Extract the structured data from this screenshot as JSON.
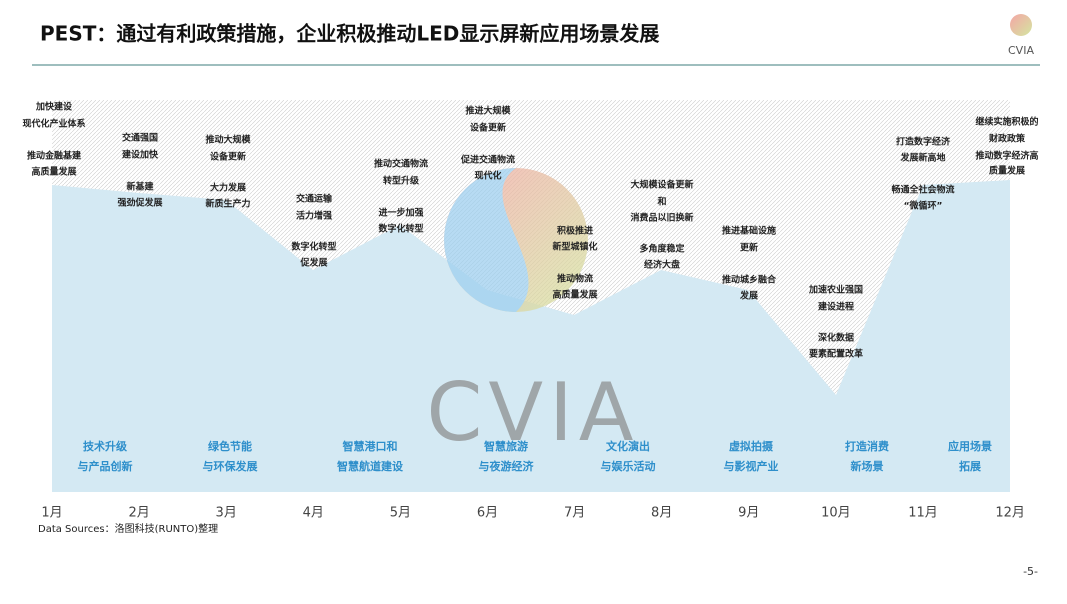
{
  "header": {
    "title": "PEST：通过有利政策措施，企业积极推动LED显示屏新应用场景发展",
    "logo": "CVIA"
  },
  "watermark": "CVIA",
  "months": [
    "1月",
    "2月",
    "3月",
    "4月",
    "5月",
    "6月",
    "7月",
    "8月",
    "9月",
    "10月",
    "11月",
    "12月"
  ],
  "notes": [
    [
      "加快建设",
      "现代化产业体系",
      "推动金融基建",
      "高质量发展"
    ],
    [
      "交通强国",
      "建设加快",
      "新基建",
      "强劲促发展"
    ],
    [
      "推动大规模",
      "设备更新",
      "大力发展",
      "新质生产力"
    ],
    [
      "交通运输",
      "活力增强",
      "数字化转型",
      "促发展"
    ],
    [
      "推动交通物流",
      "转型升级",
      "进一步加强",
      "数字化转型"
    ],
    [
      "推进大规模",
      "设备更新",
      "促进交通物流",
      "现代化"
    ],
    [
      "积极推进",
      "新型城镇化",
      "推动物流",
      "高质量发展"
    ],
    [
      "大规模设备更新",
      "和",
      "消费品以旧换新",
      "多角度稳定",
      "经济大盘"
    ],
    [
      "推进基础设施",
      "更新",
      "推动城乡融合",
      "发展"
    ],
    [
      "加速农业强国",
      "建设进程",
      "深化数据",
      "要素配置改革"
    ],
    [
      "打造数字经济",
      "发展新高地",
      "畅通全社会物流",
      "“微循环”"
    ],
    [
      "继续实施积极的",
      "财政政策",
      "推动数字经济高",
      "质量发展"
    ]
  ],
  "applications": [
    [
      "技术升级",
      "与产品创新"
    ],
    [
      "绿色节能",
      "与环保发展"
    ],
    [
      "智慧港口和",
      "智慧航道建设"
    ],
    [
      "智慧旅游",
      "与夜游经济"
    ],
    [
      "文化演出",
      "与娱乐活动"
    ],
    [
      "虚拟拍摄",
      "与影视产业"
    ],
    [
      "打造消费",
      "新场景"
    ],
    [
      "应用场景",
      "拓展"
    ]
  ],
  "footer": {
    "source": "Data Sources：洛图科技(RUNTO)整理",
    "page": "-5-"
  }
}
